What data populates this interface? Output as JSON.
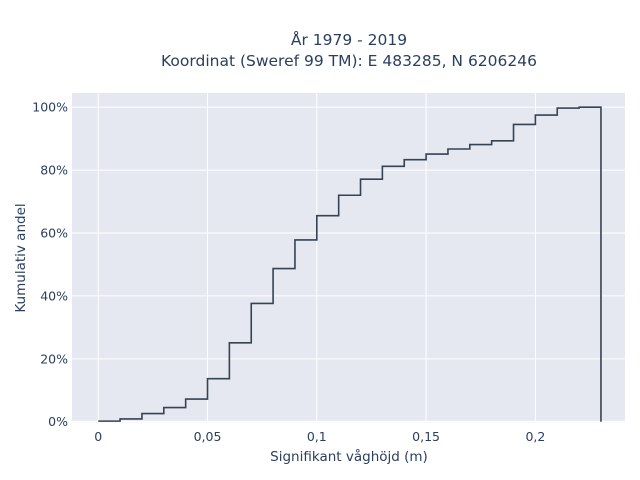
{
  "chart_data": {
    "type": "line",
    "line_shape": "step-cumulative",
    "title": "År 1979 - 2019",
    "subtitle": "Koordinat (Sweref 99 TM): E 483285, N 6206246",
    "xlabel": "Signifikant våghöjd (m)",
    "ylabel": "Kumulativ andel",
    "xlim": [
      -0.012,
      0.241
    ],
    "ylim": [
      -0.004,
      1.045
    ],
    "x_ticks": [
      0,
      0.05,
      0.1,
      0.15,
      0.2
    ],
    "x_tick_labels": [
      "0",
      "0,05",
      "0,1",
      "0,15",
      "0,2"
    ],
    "y_ticks": [
      0,
      0.2,
      0.4,
      0.6,
      0.8,
      1.0
    ],
    "y_tick_labels": [
      "0%",
      "20%",
      "40%",
      "60%",
      "80%",
      "100%"
    ],
    "grid": true,
    "background_color": "#e5e8f1",
    "line_color": "#374252",
    "x": [
      0,
      0.01,
      0.02,
      0.03,
      0.04,
      0.05,
      0.06,
      0.07,
      0.08,
      0.09,
      0.1,
      0.11,
      0.12,
      0.13,
      0.14,
      0.15,
      0.16,
      0.17,
      0.18,
      0.19,
      0.2,
      0.21,
      0.22,
      0.23
    ],
    "values": [
      0.002,
      0.009,
      0.026,
      0.045,
      0.072,
      0.137,
      0.251,
      0.376,
      0.487,
      0.578,
      0.655,
      0.72,
      0.771,
      0.812,
      0.833,
      0.851,
      0.867,
      0.881,
      0.893,
      0.945,
      0.975,
      0.997,
      1.0,
      0.0
    ]
  }
}
